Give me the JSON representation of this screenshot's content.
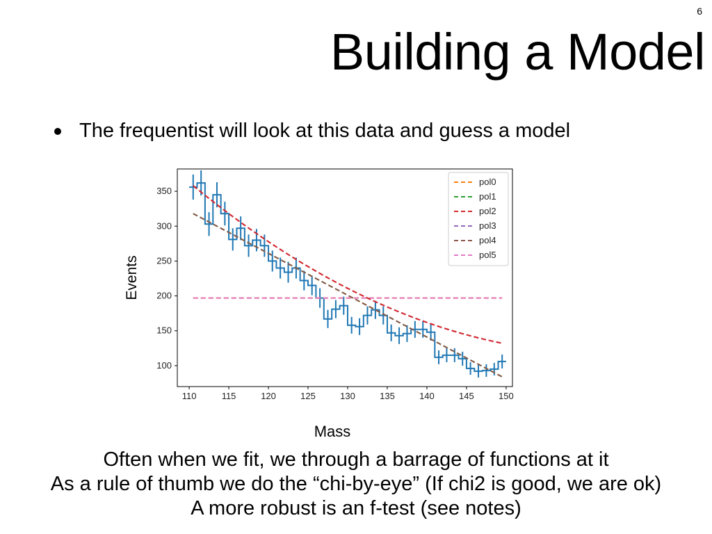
{
  "slide": {
    "number": "6",
    "title": "Building a Model",
    "bullet": "The frequentist will look at this data and guess a model",
    "footer_lines": [
      "Often when we fit, we through a barrage of functions at it",
      "As a rule of thumb we do the “chi-by-eye” (If chi2 is good, we are ok)",
      "A more robust is an f-test (see notes)"
    ]
  },
  "chart_data": {
    "type": "line",
    "xlabel": "Mass",
    "ylabel": "Events",
    "xlim": [
      108.5,
      150.8
    ],
    "ylim": [
      70,
      382
    ],
    "xticks": [
      110,
      115,
      120,
      125,
      130,
      135,
      140,
      145,
      150
    ],
    "yticks": [
      100,
      150,
      200,
      250,
      300,
      350
    ],
    "grid": false,
    "legend_position": "top-right",
    "data_series": {
      "color": "#1f77b4",
      "x": [
        110.5,
        111.5,
        112.5,
        113.5,
        114.5,
        115.5,
        116.5,
        117.5,
        118.5,
        119.5,
        120.5,
        121.5,
        122.5,
        123.5,
        124.5,
        125.5,
        126.5,
        127.5,
        128.5,
        129.5,
        130.5,
        131.5,
        132.5,
        133.5,
        134.5,
        135.5,
        136.5,
        137.5,
        138.5,
        139.5,
        140.5,
        141.5,
        142.5,
        143.5,
        144.5,
        145.5,
        146.5,
        147.5,
        148.5,
        149.5
      ],
      "y": [
        356,
        362,
        303,
        345,
        318,
        281,
        297,
        272,
        280,
        272,
        250,
        240,
        234,
        240,
        222,
        215,
        197,
        167,
        181,
        186,
        158,
        156,
        172,
        180,
        172,
        147,
        143,
        146,
        152,
        152,
        148,
        112,
        115,
        115,
        110,
        96,
        92,
        93,
        95,
        106
      ],
      "err": [
        18,
        18,
        17,
        18,
        17,
        16,
        17,
        16,
        16,
        16,
        15,
        15,
        15,
        15,
        14,
        14,
        14,
        13,
        13,
        13,
        12,
        12,
        13,
        13,
        13,
        12,
        12,
        12,
        12,
        12,
        12,
        10,
        10,
        10,
        10,
        9,
        9,
        9,
        9,
        10
      ]
    },
    "series": [
      {
        "name": "pol0",
        "color": "#ff7f0e",
        "coef": [
          197
        ]
      },
      {
        "name": "pol1",
        "color": "#2ca02c",
        "coef": [
          318,
          -6.0
        ]
      },
      {
        "name": "pol2",
        "color": "#d62728",
        "coef": [
          358,
          -9.3,
          0.09
        ]
      },
      {
        "name": "pol3",
        "color": "#9467bd",
        "coef": [
          358,
          -9.3,
          0.09
        ]
      },
      {
        "name": "pol4",
        "color": "#8c564b",
        "coef": [
          318,
          -6.0
        ]
      },
      {
        "name": "pol5",
        "color": "#e377c2",
        "coef": [
          197
        ]
      }
    ],
    "draw_order": [
      "pol0",
      "pol1",
      "pol3",
      "pol4",
      "pol5",
      "pol2"
    ],
    "x_range": [
      110.5,
      149.5
    ]
  }
}
